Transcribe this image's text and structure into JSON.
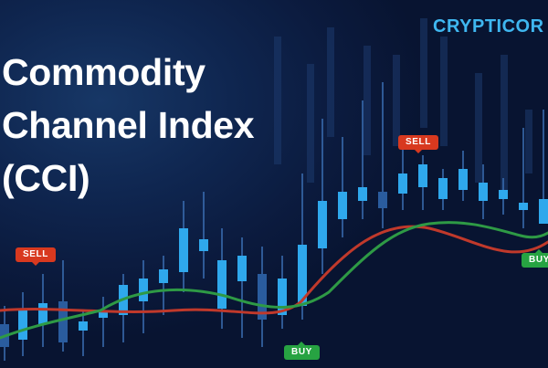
{
  "title": {
    "line1": "Commodity",
    "line2": "Channel Index",
    "line3": "(CCI)"
  },
  "logo": {
    "text": "CRYPTICOR"
  },
  "tags": {
    "sell_left": "SELL",
    "sell_top": "SELL",
    "buy_bottom": "BUY",
    "buy_right": "BUY"
  },
  "colors": {
    "candle": "#2fa8ec",
    "wick": "#3b6fb4",
    "red_line": "#c0392b",
    "green_line": "#2e9a45",
    "sell": "#d8391f",
    "buy": "#27a342",
    "logo": "#3fb7f0"
  }
}
